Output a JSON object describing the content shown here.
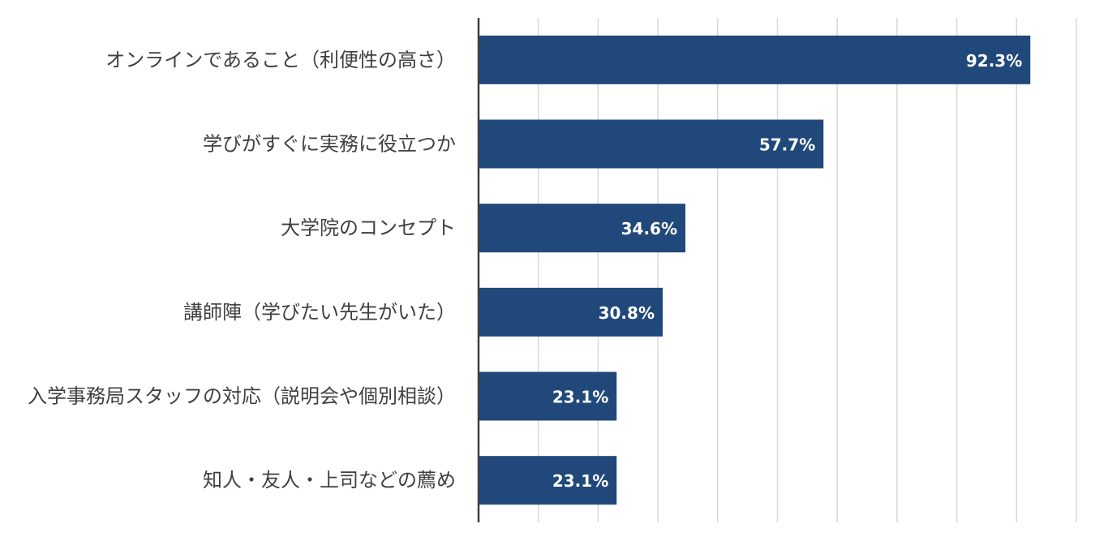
{
  "chart_data": {
    "type": "bar",
    "orientation": "horizontal",
    "categories": [
      "オンラインであること（利便性の高さ）",
      "学びがすぐに実務に役立つか",
      "大学院のコンセプト",
      "講師陣（学びたい先生がいた）",
      "入学事務局スタッフの対応（説明会や個別相談）",
      "知人・友人・上司などの薦め"
    ],
    "values": [
      92.3,
      57.7,
      34.6,
      30.8,
      23.1,
      23.1
    ],
    "data_labels": [
      "92.3%",
      "57.7%",
      "34.6%",
      "30.8%",
      "23.1%",
      "23.1%"
    ],
    "xlim": [
      0,
      100
    ],
    "grid": true,
    "bar_color": "#21487a",
    "grid_color": "#d9d9d9",
    "axis_color": "#404040"
  }
}
